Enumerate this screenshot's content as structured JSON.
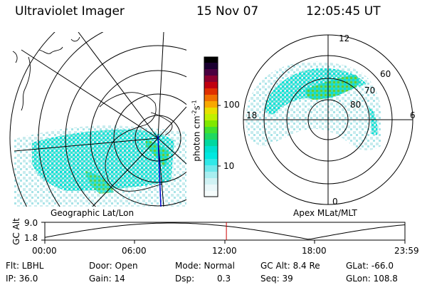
{
  "header": {
    "title": "Ultraviolet Imager",
    "date": "15 Nov 07",
    "time": "12:05:45 UT"
  },
  "colorbar": {
    "unit_prefix": "photon cm",
    "unit_sup1": "-2",
    "unit_mid": "s",
    "unit_sup2": "-1",
    "tick_100": "100",
    "tick_10": "10"
  },
  "left_map": {
    "label": "Geographic Lat/Lon"
  },
  "right_map": {
    "label": "Apex  MLat/MLT",
    "mlt_labels": {
      "top": "12",
      "left": "18",
      "right": "6",
      "bottom": "0"
    },
    "lat_labels": {
      "lat60": "60",
      "lat70": "70",
      "lat80": "80"
    }
  },
  "altitude": {
    "axis_label": "GC Alt",
    "y_labels": {
      "max": "9.0",
      "min": "1.8"
    },
    "time_ticks": [
      "00:00",
      "06:00",
      "12:00",
      "18:00",
      "23:59"
    ],
    "cursor_hour": 12.1
  },
  "footer": {
    "flt": "Flt: LBHL",
    "door": "Door: Open",
    "mode": "Mode: Normal",
    "gcalt": "GC Alt: 8.4 Re",
    "glat": "GLat: -66.0",
    "ip": "IP: 36.0",
    "gain": "Gain: 14",
    "dsp_label": "Dsp:",
    "dsp_value": "0.3",
    "seq": "Seq: 39",
    "glon": "GLon: 108.8"
  },
  "colors": {
    "cyan": "#00e0d8",
    "pale": "#bfe8ea",
    "green": "#60d030",
    "cursor": "#cc0000",
    "meridian": "#0000cc"
  }
}
